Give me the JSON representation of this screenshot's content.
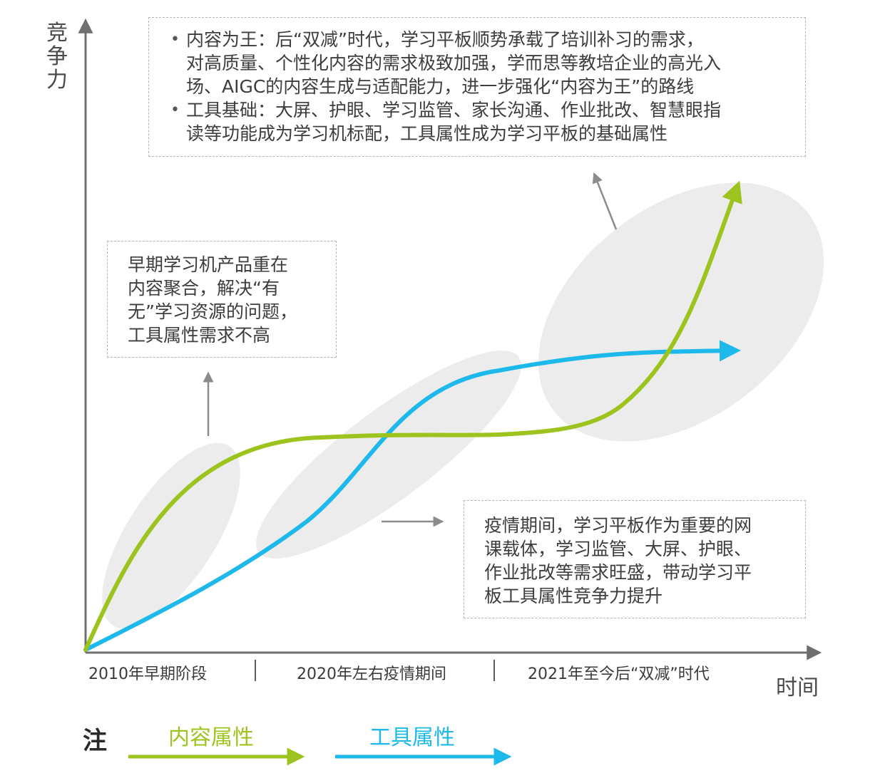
{
  "axes": {
    "y_label": "竞争力",
    "x_label": "时间"
  },
  "periods": [
    "2010年早期阶段",
    "2020年左右疫情期间",
    "2021年至今后“双减”时代"
  ],
  "notes": {
    "top": {
      "bullet_glyph": "•",
      "items": [
        {
          "lines": [
            "内容为王：后“双减”时代，学习平板顺势承载了培训补习的需求，",
            "对高质量、个性化内容的需求极致加强，学而思等教培企业的高光入",
            "场、AIGC的内容生成与适配能力，进一步强化“内容为王”的路线"
          ]
        },
        {
          "lines": [
            "工具基础：大屏、护眼、学习监管、家长沟通、作业批改、智慧眼指",
            "读等功能成为学习机标配，工具属性成为学习平板的基础属性"
          ]
        }
      ]
    },
    "left": {
      "lines": [
        "早期学习机产品重在",
        "内容聚合，解决“有",
        "无”学习资源的问题，",
        "工具属性需求不高"
      ]
    },
    "bottom": {
      "lines": [
        "疫情期间，学习平板作为重要的网",
        "课载体，学习监管、大屏、护眼、",
        "作业批改等需求旺盛，带动学习平",
        "板工具属性竞争力提升"
      ]
    }
  },
  "legend": {
    "title": "注",
    "items": [
      {
        "label": "内容属性",
        "color": "#9dc41e"
      },
      {
        "label": "工具属性",
        "color": "#1db9ea"
      }
    ]
  },
  "colors": {
    "content": "#9dc41e",
    "tool": "#1db9ea",
    "axis": "#6f6f6f",
    "halo": "#ececec",
    "pointer": "#8c8c8c"
  }
}
